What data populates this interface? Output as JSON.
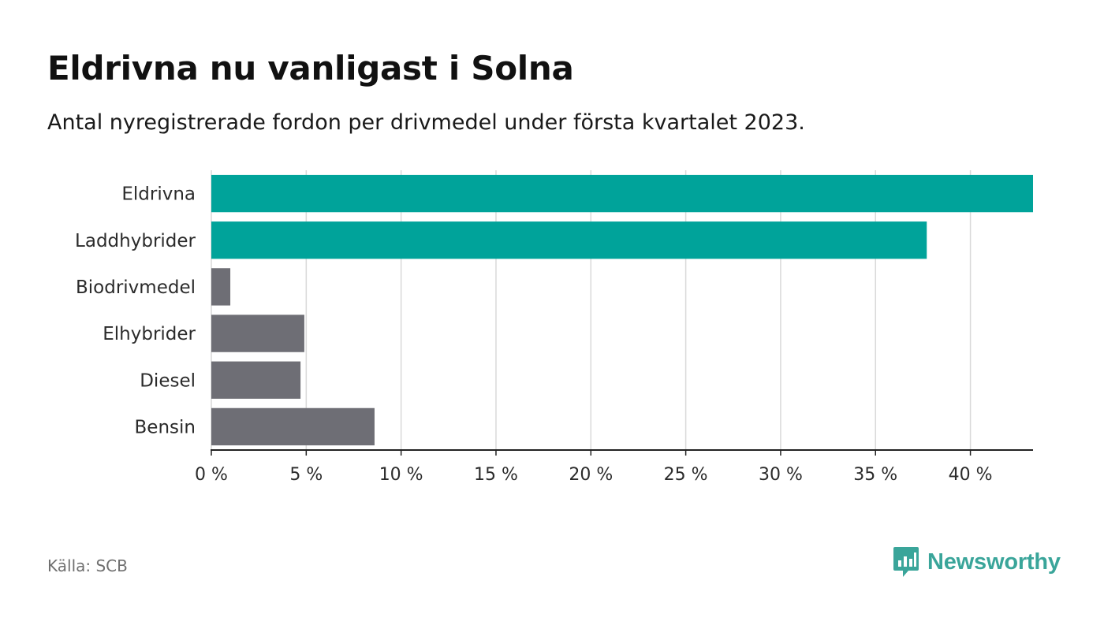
{
  "header": {
    "title": "Eldrivna nu vanligast i Solna",
    "subtitle": "Antal nyregistrerade fordon per drivmedel under första kvartalet 2023."
  },
  "chart_data": {
    "type": "bar",
    "orientation": "horizontal",
    "categories": [
      "Eldrivna",
      "Laddhybrider",
      "Biodrivmedel",
      "Elhybrider",
      "Diesel",
      "Bensin"
    ],
    "values": [
      43.3,
      37.7,
      1.0,
      4.9,
      4.7,
      8.6
    ],
    "unit": "%",
    "highlighted": [
      "Eldrivna",
      "Laddhybrider"
    ],
    "xlim": [
      0,
      43.3
    ],
    "xticks": [
      0,
      5,
      10,
      15,
      20,
      25,
      30,
      35,
      40
    ],
    "xtick_labels": [
      "0 %",
      "5 %",
      "10 %",
      "15 %",
      "20 %",
      "25 %",
      "30 %",
      "35 %",
      "40 %"
    ],
    "grid": true,
    "title": "Eldrivna nu vanligast i Solna",
    "xlabel": "",
    "ylabel": ""
  },
  "colors": {
    "highlight": "#00a39a",
    "other": "#6e6e75",
    "grid": "#d9d9d9",
    "axis": "#222222",
    "brand": "#3aa59a"
  },
  "footer": {
    "source": "Källa: SCB",
    "brand": "Newsworthy",
    "brand_icon": "newsworthy-logo-icon"
  }
}
